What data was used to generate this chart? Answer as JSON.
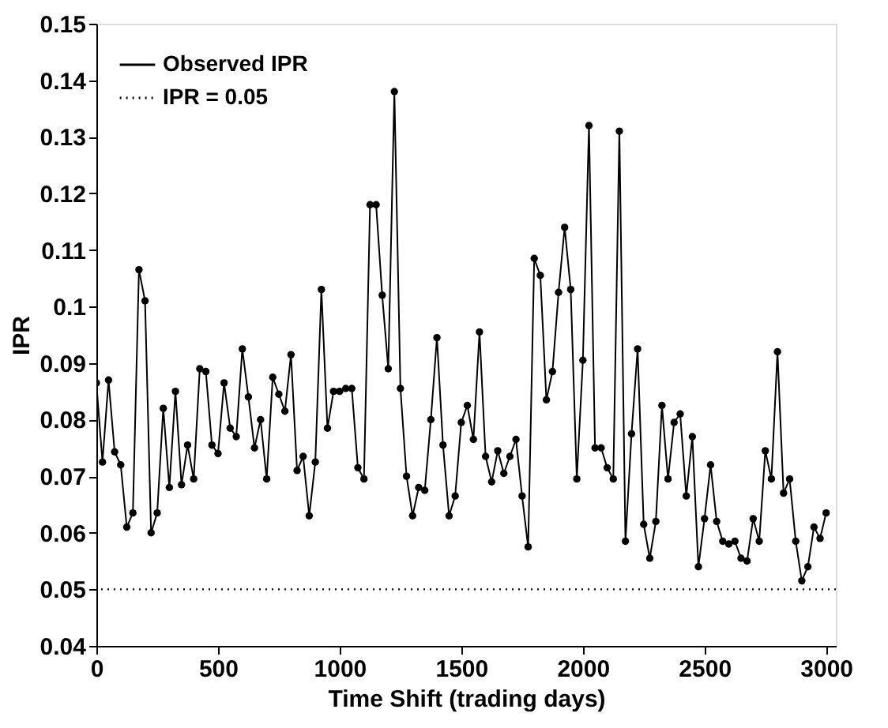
{
  "chart_data": {
    "type": "line",
    "xlabel": "Time Shift (trading days)",
    "ylabel": "IPR",
    "x": [
      0,
      25,
      50,
      75,
      100,
      125,
      150,
      175,
      200,
      225,
      250,
      275,
      300,
      325,
      350,
      375,
      400,
      425,
      450,
      475,
      500,
      525,
      550,
      575,
      600,
      625,
      650,
      675,
      700,
      725,
      750,
      775,
      800,
      825,
      850,
      875,
      900,
      925,
      950,
      975,
      1000,
      1025,
      1050,
      1075,
      1100,
      1125,
      1150,
      1175,
      1200,
      1225,
      1250,
      1275,
      1300,
      1325,
      1350,
      1375,
      1400,
      1425,
      1450,
      1475,
      1500,
      1525,
      1550,
      1575,
      1600,
      1625,
      1650,
      1675,
      1700,
      1725,
      1750,
      1775,
      1800,
      1825,
      1850,
      1875,
      1900,
      1925,
      1950,
      1975,
      2000,
      2025,
      2050,
      2075,
      2100,
      2125,
      2150,
      2175,
      2200,
      2225,
      2250,
      2275,
      2300,
      2325,
      2350,
      2375,
      2400,
      2425,
      2450,
      2475,
      2500,
      2525,
      2550,
      2575,
      2600,
      2625,
      2650,
      2675,
      2700,
      2725,
      2750,
      2775,
      2800,
      2825,
      2850,
      2875,
      2900,
      2925,
      2950,
      2975,
      3000
    ],
    "series": [
      {
        "name": "Observed IPR",
        "color": "#000000",
        "values": [
          0.0865,
          0.0725,
          0.087,
          0.0743,
          0.072,
          0.061,
          0.0635,
          0.1065,
          0.101,
          0.06,
          0.0635,
          0.082,
          0.068,
          0.085,
          0.0685,
          0.0755,
          0.0695,
          0.089,
          0.0885,
          0.0755,
          0.074,
          0.0865,
          0.0785,
          0.077,
          0.0925,
          0.084,
          0.075,
          0.08,
          0.0695,
          0.0875,
          0.0845,
          0.0815,
          0.0915,
          0.071,
          0.0735,
          0.063,
          0.0725,
          0.103,
          0.0785,
          0.085,
          0.085,
          0.0855,
          0.0855,
          0.0715,
          0.0695,
          0.118,
          0.118,
          0.102,
          0.089,
          0.138,
          0.0855,
          0.07,
          0.063,
          0.068,
          0.0675,
          0.08,
          0.0945,
          0.0755,
          0.063,
          0.0665,
          0.0795,
          0.0825,
          0.0765,
          0.0955,
          0.0735,
          0.069,
          0.0745,
          0.0705,
          0.0735,
          0.0765,
          0.0665,
          0.0575,
          0.1085,
          0.1055,
          0.0835,
          0.0885,
          0.1025,
          0.114,
          0.103,
          0.0695,
          0.0905,
          0.132,
          0.075,
          0.075,
          0.0715,
          0.0695,
          0.131,
          0.0585,
          0.0775,
          0.0925,
          0.0615,
          0.0555,
          0.062,
          0.0825,
          0.0695,
          0.0795,
          0.081,
          0.0665,
          0.077,
          0.054,
          0.0625,
          0.072,
          0.062,
          0.0585,
          0.058,
          0.0585,
          0.0555,
          0.055,
          0.0625,
          0.0585,
          0.0745,
          0.0695,
          0.092,
          0.067,
          0.0695,
          0.0585,
          0.0515,
          0.054,
          0.061,
          0.059,
          0.0635
        ]
      }
    ],
    "ref_lines": [
      {
        "axis": "y",
        "value": 0.05,
        "label": "IPR = 0.05",
        "color": "#000000",
        "line_style": "dotted"
      }
    ],
    "xlim": [
      0,
      3040
    ],
    "xticks": [
      0,
      500,
      1000,
      1500,
      2000,
      2500,
      3000
    ],
    "ylim": [
      0.04,
      0.15
    ],
    "yticks": [
      0.04,
      0.05,
      0.06,
      0.07,
      0.08,
      0.09,
      0.1,
      0.11,
      0.12,
      0.13,
      0.14,
      0.15
    ],
    "grid": false,
    "legend": "top left",
    "marker": "circle",
    "line_style": "solid"
  }
}
